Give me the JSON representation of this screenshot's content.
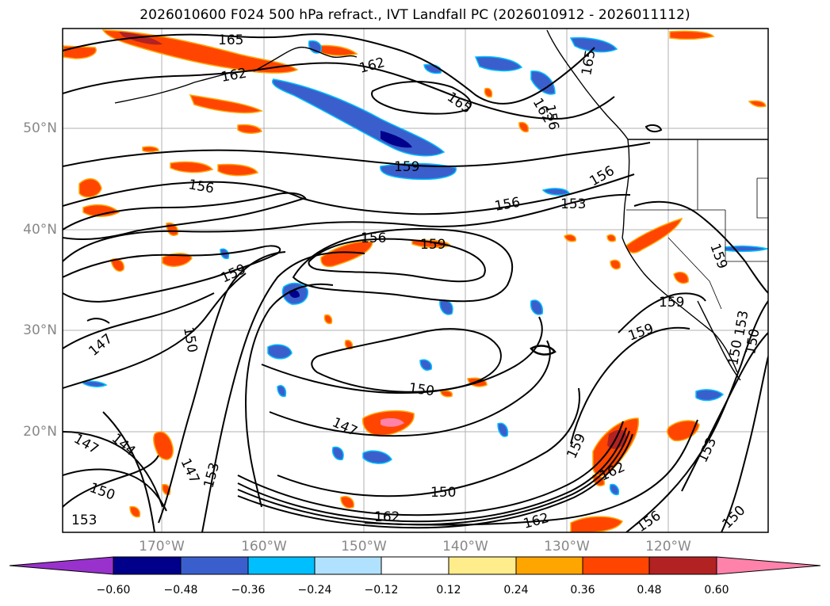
{
  "title": "2026010600 F024 500 hPa refract., IVT Landfall PC (2026010912 - 2026011112)",
  "latitude_labels": [
    "50°N",
    "40°N",
    "30°N",
    "20°N"
  ],
  "longitude_labels": [
    "170°W",
    "160°W",
    "150°W",
    "140°W",
    "130°W",
    "120°W"
  ],
  "contour_labels": [
    "165",
    "162",
    "162",
    "165",
    "162",
    "165",
    "159",
    "156",
    "156",
    "156",
    "153",
    "156",
    "159",
    "159",
    "147",
    "150",
    "150",
    "147",
    "144",
    "147",
    "153",
    "147",
    "150",
    "150",
    "153",
    "162",
    "159",
    "162",
    "159",
    "162",
    "156",
    "153",
    "150",
    "153",
    "150",
    "159",
    "159",
    "156",
    "150"
  ],
  "colorbar": {
    "extend": "both",
    "tick_labels": [
      "−0.60",
      "−0.48",
      "−0.36",
      "−0.24",
      "−0.12",
      "0.12",
      "0.24",
      "0.36",
      "0.48",
      "0.60"
    ],
    "colors": [
      "#9932cc",
      "#00008b",
      "#3a5fcd",
      "#00bfff",
      "#b0e2ff",
      "#ffffff",
      "#ffec8b",
      "#ffa500",
      "#ff4500",
      "#b22222",
      "#ff82ab"
    ]
  },
  "styles": {
    "contour_color": "#000000",
    "grid_color": "#b0b0b0",
    "coast_color": "#000000"
  }
}
